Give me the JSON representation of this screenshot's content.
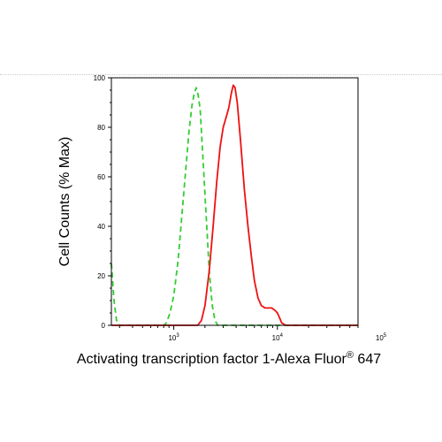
{
  "chart_data": {
    "type": "line",
    "xlabel": "Activating transcription factor 1-Alexa Fluor",
    "xlabel_superscript": "®",
    "xlabel_suffix": " 647",
    "ylabel": "Cell Counts (% Max)",
    "xscale": "log",
    "xlim": [
      250,
      60000
    ],
    "ylim": [
      0,
      100
    ],
    "x_ticks": [
      {
        "value": 1000,
        "base": "10",
        "exp": "3"
      },
      {
        "value": 10000,
        "base": "10",
        "exp": "4"
      },
      {
        "value": 100000,
        "base": "10",
        "exp": "5"
      }
    ],
    "y_ticks": [
      0,
      20,
      40,
      60,
      80,
      100
    ],
    "grid": false,
    "legend": "none",
    "series": [
      {
        "color": "#33cc33",
        "dash": "dashed",
        "points": [
          [
            250,
            25
          ],
          [
            265,
            10
          ],
          [
            280,
            2
          ],
          [
            300,
            0
          ],
          [
            800,
            0
          ],
          [
            850,
            1
          ],
          [
            920,
            5
          ],
          [
            1000,
            12
          ],
          [
            1100,
            26
          ],
          [
            1200,
            45
          ],
          [
            1300,
            62
          ],
          [
            1400,
            78
          ],
          [
            1500,
            89
          ],
          [
            1580,
            94
          ],
          [
            1650,
            96
          ],
          [
            1720,
            93
          ],
          [
            1800,
            87
          ],
          [
            1900,
            70
          ],
          [
            2050,
            45
          ],
          [
            2200,
            22
          ],
          [
            2350,
            8
          ],
          [
            2500,
            2
          ],
          [
            2650,
            0
          ],
          [
            60000,
            0
          ]
        ]
      },
      {
        "color": "#ee1111",
        "dash": "solid",
        "points": [
          [
            250,
            0
          ],
          [
            1700,
            0
          ],
          [
            1850,
            2
          ],
          [
            2000,
            8
          ],
          [
            2200,
            22
          ],
          [
            2400,
            40
          ],
          [
            2600,
            58
          ],
          [
            2800,
            72
          ],
          [
            3000,
            80
          ],
          [
            3200,
            84
          ],
          [
            3400,
            88
          ],
          [
            3600,
            94
          ],
          [
            3750,
            97
          ],
          [
            3900,
            96
          ],
          [
            4100,
            90
          ],
          [
            4400,
            75
          ],
          [
            4800,
            55
          ],
          [
            5200,
            40
          ],
          [
            5600,
            28
          ],
          [
            6000,
            18
          ],
          [
            6500,
            11
          ],
          [
            7000,
            8
          ],
          [
            7600,
            7
          ],
          [
            8200,
            7
          ],
          [
            8800,
            7
          ],
          [
            9500,
            6
          ],
          [
            10000,
            5
          ],
          [
            10500,
            3
          ],
          [
            11000,
            1
          ],
          [
            12000,
            0
          ],
          [
            60000,
            0
          ]
        ]
      }
    ]
  }
}
